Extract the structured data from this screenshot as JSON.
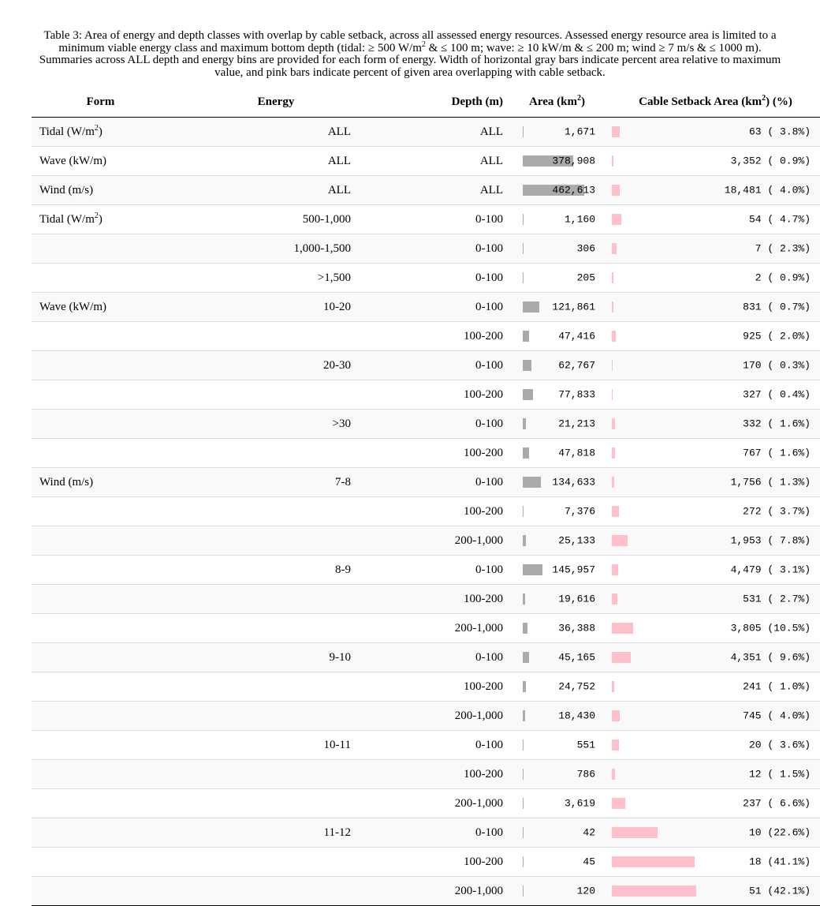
{
  "caption": {
    "part1": "Table 3: Area of energy and depth classes with overlap by cable setback, across all assessed energy resources. Assessed energy resource area is limited to a minimum viable energy class and maximum bottom depth (tidal: ≥ 500 W/m",
    "sup1": "2",
    "part2": " & ≤ 100 m; wave: ≥ 10 kW/m & ≤ 200 m; wind ≥ 7 m/s & ≤ 1000 m). Summaries across ALL depth and energy bins are provided for each form of energy. Width of horizontal gray bars indicate percent area relative to maximum value, and pink bars indicate percent of given area overlapping with cable setback."
  },
  "headers": {
    "form": "Form",
    "energy": "Energy",
    "depth": "Depth (m)",
    "area_pre": "Area (km",
    "area_sup": "2",
    "area_post": ")",
    "cable_pre": "Cable Setback Area (km",
    "cable_sup": "2",
    "cable_post": ") (%)"
  },
  "rows": [
    {
      "form": "Tidal (W/m",
      "form_sup": "2",
      "form_post": ")",
      "energy": "ALL",
      "depth": "ALL",
      "area": "1,671",
      "area_pct": 0.36,
      "cable": "63 ( 3.8%)",
      "cable_pct": 3.8
    },
    {
      "form": "Wave (kW/m)",
      "energy": "ALL",
      "depth": "ALL",
      "area": "378,908",
      "area_pct": 81.9,
      "cable": "3,352 ( 0.9%)",
      "cable_pct": 0.9
    },
    {
      "form": "Wind (m/s)",
      "energy": "ALL",
      "depth": "ALL",
      "area": "462,613",
      "area_pct": 100,
      "cable": "18,481 ( 4.0%)",
      "cable_pct": 4.0
    },
    {
      "form": "Tidal (W/m",
      "form_sup": "2",
      "form_post": ")",
      "energy": "500-1,000",
      "depth": "0-100",
      "area": "1,160",
      "area_pct": 0.25,
      "cable": "54 ( 4.7%)",
      "cable_pct": 4.7
    },
    {
      "form": "",
      "energy": "1,000-1,500",
      "depth": "0-100",
      "area": "306",
      "area_pct": 0.07,
      "cable": "7 ( 2.3%)",
      "cable_pct": 2.3
    },
    {
      "form": "",
      "energy": ">1,500",
      "depth": "0-100",
      "area": "205",
      "area_pct": 0.04,
      "cable": "2 ( 0.9%)",
      "cable_pct": 0.9
    },
    {
      "form": "Wave (kW/m)",
      "energy": "10-20",
      "depth": "0-100",
      "area": "121,861",
      "area_pct": 26.3,
      "cable": "831 ( 0.7%)",
      "cable_pct": 0.7
    },
    {
      "form": "",
      "energy": "",
      "depth": "100-200",
      "area": "47,416",
      "area_pct": 10.2,
      "cable": "925 ( 2.0%)",
      "cable_pct": 2.0
    },
    {
      "form": "",
      "energy": "20-30",
      "depth": "0-100",
      "area": "62,767",
      "area_pct": 13.6,
      "cable": "170 ( 0.3%)",
      "cable_pct": 0.3
    },
    {
      "form": "",
      "energy": "",
      "depth": "100-200",
      "area": "77,833",
      "area_pct": 16.8,
      "cable": "327 ( 0.4%)",
      "cable_pct": 0.4
    },
    {
      "form": "",
      "energy": ">30",
      "depth": "0-100",
      "area": "21,213",
      "area_pct": 4.6,
      "cable": "332 ( 1.6%)",
      "cable_pct": 1.6
    },
    {
      "form": "",
      "energy": "",
      "depth": "100-200",
      "area": "47,818",
      "area_pct": 10.3,
      "cable": "767 ( 1.6%)",
      "cable_pct": 1.6
    },
    {
      "form": "Wind (m/s)",
      "energy": "7-8",
      "depth": "0-100",
      "area": "134,633",
      "area_pct": 29.1,
      "cable": "1,756 ( 1.3%)",
      "cable_pct": 1.3
    },
    {
      "form": "",
      "energy": "",
      "depth": "100-200",
      "area": "7,376",
      "area_pct": 1.6,
      "cable": "272 ( 3.7%)",
      "cable_pct": 3.7
    },
    {
      "form": "",
      "energy": "",
      "depth": "200-1,000",
      "area": "25,133",
      "area_pct": 5.4,
      "cable": "1,953 ( 7.8%)",
      "cable_pct": 7.8
    },
    {
      "form": "",
      "energy": "8-9",
      "depth": "0-100",
      "area": "145,957",
      "area_pct": 31.6,
      "cable": "4,479 ( 3.1%)",
      "cable_pct": 3.1
    },
    {
      "form": "",
      "energy": "",
      "depth": "100-200",
      "area": "19,616",
      "area_pct": 4.2,
      "cable": "531 ( 2.7%)",
      "cable_pct": 2.7
    },
    {
      "form": "",
      "energy": "",
      "depth": "200-1,000",
      "area": "36,388",
      "area_pct": 7.9,
      "cable": "3,805 (10.5%)",
      "cable_pct": 10.5
    },
    {
      "form": "",
      "energy": "9-10",
      "depth": "0-100",
      "area": "45,165",
      "area_pct": 9.8,
      "cable": "4,351 ( 9.6%)",
      "cable_pct": 9.6
    },
    {
      "form": "",
      "energy": "",
      "depth": "100-200",
      "area": "24,752",
      "area_pct": 5.4,
      "cable": "241 ( 1.0%)",
      "cable_pct": 1.0
    },
    {
      "form": "",
      "energy": "",
      "depth": "200-1,000",
      "area": "18,430",
      "area_pct": 4.0,
      "cable": "745 ( 4.0%)",
      "cable_pct": 4.0
    },
    {
      "form": "",
      "energy": "10-11",
      "depth": "0-100",
      "area": "551",
      "area_pct": 0.12,
      "cable": "20 ( 3.6%)",
      "cable_pct": 3.6
    },
    {
      "form": "",
      "energy": "",
      "depth": "100-200",
      "area": "786",
      "area_pct": 0.17,
      "cable": "12 ( 1.5%)",
      "cable_pct": 1.5
    },
    {
      "form": "",
      "energy": "",
      "depth": "200-1,000",
      "area": "3,619",
      "area_pct": 0.78,
      "cable": "237 ( 6.6%)",
      "cable_pct": 6.6
    },
    {
      "form": "",
      "energy": "11-12",
      "depth": "0-100",
      "area": "42",
      "area_pct": 0.01,
      "cable": "10 (22.6%)",
      "cable_pct": 22.6
    },
    {
      "form": "",
      "energy": "",
      "depth": "100-200",
      "area": "45",
      "area_pct": 0.01,
      "cable": "18 (41.1%)",
      "cable_pct": 41.1
    },
    {
      "form": "",
      "energy": "",
      "depth": "200-1,000",
      "area": "120",
      "area_pct": 0.03,
      "cable": "51 (42.1%)",
      "cable_pct": 42.1
    }
  ]
}
